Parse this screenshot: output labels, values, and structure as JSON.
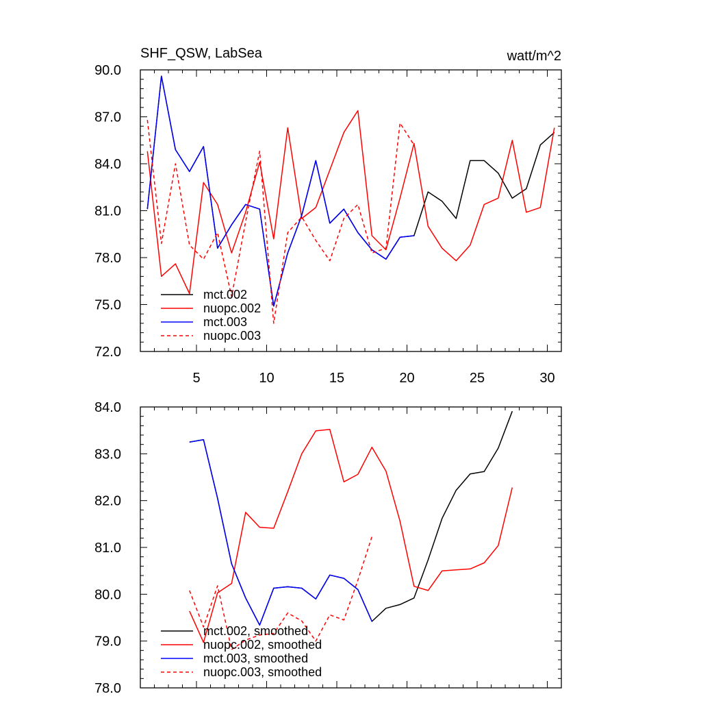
{
  "chart_data": [
    {
      "type": "line",
      "title": "SHF_QSW, LabSea",
      "units": "watt/m^2",
      "xlim": [
        1,
        31
      ],
      "ylim": [
        72.0,
        90.0
      ],
      "xticks": [
        5,
        10,
        15,
        20,
        25,
        30
      ],
      "yticks": [
        72.0,
        75.0,
        78.0,
        81.0,
        84.0,
        87.0,
        90.0
      ],
      "ytick_labels": [
        "72.0",
        "75.0",
        "78.0",
        "81.0",
        "84.0",
        "87.0",
        "90.0"
      ],
      "show_xtick_labels": true,
      "legend_position": "bottom-left",
      "series": [
        {
          "name": "mct.002",
          "color": "#000000",
          "dash": false,
          "x": [
            1.5,
            2.5,
            3.5,
            4.5,
            5.5,
            6.5,
            7.5,
            8.5,
            9.5,
            10.5,
            11.5,
            12.5,
            13.5,
            14.5,
            15.5,
            16.5,
            17.5,
            18.5,
            19.5,
            20.5,
            21.5,
            22.5,
            23.5,
            24.5,
            25.5,
            26.5,
            27.5,
            28.5,
            29.5,
            30.5
          ],
          "y": [
            81.1,
            89.6,
            84.9,
            83.5,
            85.1,
            78.6,
            80.1,
            81.4,
            81.1,
            74.9,
            78.3,
            80.7,
            84.2,
            80.2,
            81.1,
            79.6,
            78.5,
            77.9,
            79.3,
            79.4,
            82.2,
            81.6,
            80.5,
            84.2,
            84.2,
            83.4,
            81.8,
            82.4,
            85.2,
            86.0
          ]
        },
        {
          "name": "nuopc.002",
          "color": "#ff0000",
          "dash": false,
          "x": [
            1.5,
            2.5,
            3.5,
            4.5,
            5.5,
            6.5,
            7.5,
            8.5,
            9.5,
            10.5,
            11.5,
            12.5,
            13.5,
            14.5,
            15.5,
            16.5,
            17.5,
            18.5,
            19.5,
            20.5,
            21.5,
            22.5,
            23.5,
            24.5,
            25.5,
            26.5,
            27.5,
            28.5,
            29.5,
            30.5
          ],
          "y": [
            84.8,
            76.8,
            77.6,
            75.7,
            82.8,
            81.4,
            78.3,
            80.9,
            84.1,
            79.2,
            86.3,
            80.5,
            81.2,
            83.6,
            86.0,
            87.4,
            79.4,
            78.5,
            81.8,
            85.3,
            80.0,
            78.6,
            77.8,
            78.8,
            81.4,
            81.8,
            85.5,
            80.9,
            81.2,
            86.3
          ]
        },
        {
          "name": "mct.003",
          "color": "#0000ff",
          "dash": false,
          "x": [
            1.5,
            2.5,
            3.5,
            4.5,
            5.5,
            6.5,
            7.5,
            8.5,
            9.5,
            10.5,
            11.5,
            12.5,
            13.5,
            14.5,
            15.5,
            16.5,
            17.5,
            18.5,
            19.5,
            20.5
          ],
          "y": [
            81.1,
            89.6,
            84.9,
            83.5,
            85.1,
            78.6,
            80.1,
            81.4,
            81.1,
            74.9,
            78.3,
            80.7,
            84.2,
            80.2,
            81.1,
            79.6,
            78.5,
            77.9,
            79.3,
            79.4
          ]
        },
        {
          "name": "nuopc.003",
          "color": "#ff0000",
          "dash": true,
          "x": [
            1.5,
            2.5,
            3.5,
            4.5,
            5.5,
            6.5,
            7.5,
            8.5,
            9.5,
            10.5,
            11.5,
            12.5,
            13.5,
            14.5,
            15.5,
            16.5,
            17.5,
            18.5,
            19.5,
            20.5
          ],
          "y": [
            86.8,
            78.9,
            84.0,
            78.8,
            77.9,
            79.6,
            75.5,
            80.3,
            84.8,
            73.8,
            79.6,
            80.6,
            79.1,
            77.8,
            80.5,
            81.4,
            78.3,
            78.6,
            86.6,
            85.2
          ]
        }
      ]
    },
    {
      "type": "line",
      "xlim": [
        1,
        31
      ],
      "ylim": [
        78.0,
        84.0
      ],
      "xticks": [
        5,
        10,
        15,
        20,
        25,
        30
      ],
      "yticks": [
        78.0,
        79.0,
        80.0,
        81.0,
        82.0,
        83.0,
        84.0
      ],
      "ytick_labels": [
        "78.0",
        "79.0",
        "80.0",
        "81.0",
        "82.0",
        "83.0",
        "84.0"
      ],
      "show_xtick_labels": false,
      "legend_position": "bottom-left",
      "series": [
        {
          "name": "mct.002, smoothed",
          "color": "#000000",
          "dash": false,
          "x": [
            4.5,
            5.5,
            6.5,
            7.5,
            8.5,
            9.5,
            10.5,
            11.5,
            12.5,
            13.5,
            14.5,
            15.5,
            16.5,
            17.5,
            18.5,
            19.5,
            20.5,
            21.5,
            22.5,
            23.5,
            24.5,
            25.5,
            26.5,
            27.5
          ],
          "y": [
            83.25,
            83.3,
            82.05,
            80.65,
            79.92,
            79.34,
            80.13,
            80.16,
            80.13,
            79.9,
            80.41,
            80.34,
            80.1,
            79.42,
            79.7,
            79.78,
            79.92,
            80.73,
            81.62,
            82.22,
            82.57,
            82.62,
            83.12,
            83.91
          ]
        },
        {
          "name": "nuopc.002, smoothed",
          "color": "#ff0000",
          "dash": false,
          "x": [
            4.5,
            5.5,
            6.5,
            7.5,
            8.5,
            9.5,
            10.5,
            11.5,
            12.5,
            13.5,
            14.5,
            15.5,
            16.5,
            17.5,
            18.5,
            19.5,
            20.5,
            21.5,
            22.5,
            23.5,
            24.5,
            25.5,
            26.5,
            27.5
          ],
          "y": [
            79.64,
            78.97,
            80.03,
            80.23,
            81.75,
            81.43,
            81.41,
            82.19,
            83.0,
            83.49,
            83.52,
            82.4,
            82.56,
            83.14,
            82.63,
            81.56,
            80.17,
            80.08,
            80.5,
            80.52,
            80.54,
            80.67,
            81.04,
            82.28
          ]
        },
        {
          "name": "mct.003, smoothed",
          "color": "#0000ff",
          "dash": false,
          "x": [
            4.5,
            5.5,
            6.5,
            7.5,
            8.5,
            9.5,
            10.5,
            11.5,
            12.5,
            13.5,
            14.5,
            15.5,
            16.5,
            17.5
          ],
          "y": [
            83.25,
            83.3,
            82.05,
            80.65,
            79.92,
            79.34,
            80.13,
            80.16,
            80.13,
            79.9,
            80.41,
            80.34,
            80.1,
            79.42
          ]
        },
        {
          "name": "nuopc.003, smoothed",
          "color": "#ff0000",
          "dash": true,
          "x": [
            4.5,
            5.5,
            6.5,
            7.5,
            8.5,
            9.5,
            10.5,
            11.5,
            12.5,
            13.5,
            14.5,
            15.5,
            16.5,
            17.5
          ],
          "y": [
            80.08,
            79.3,
            80.18,
            78.82,
            79.02,
            79.13,
            79.16,
            79.6,
            79.43,
            79.0,
            79.56,
            79.45,
            80.3,
            81.23
          ]
        }
      ]
    }
  ]
}
